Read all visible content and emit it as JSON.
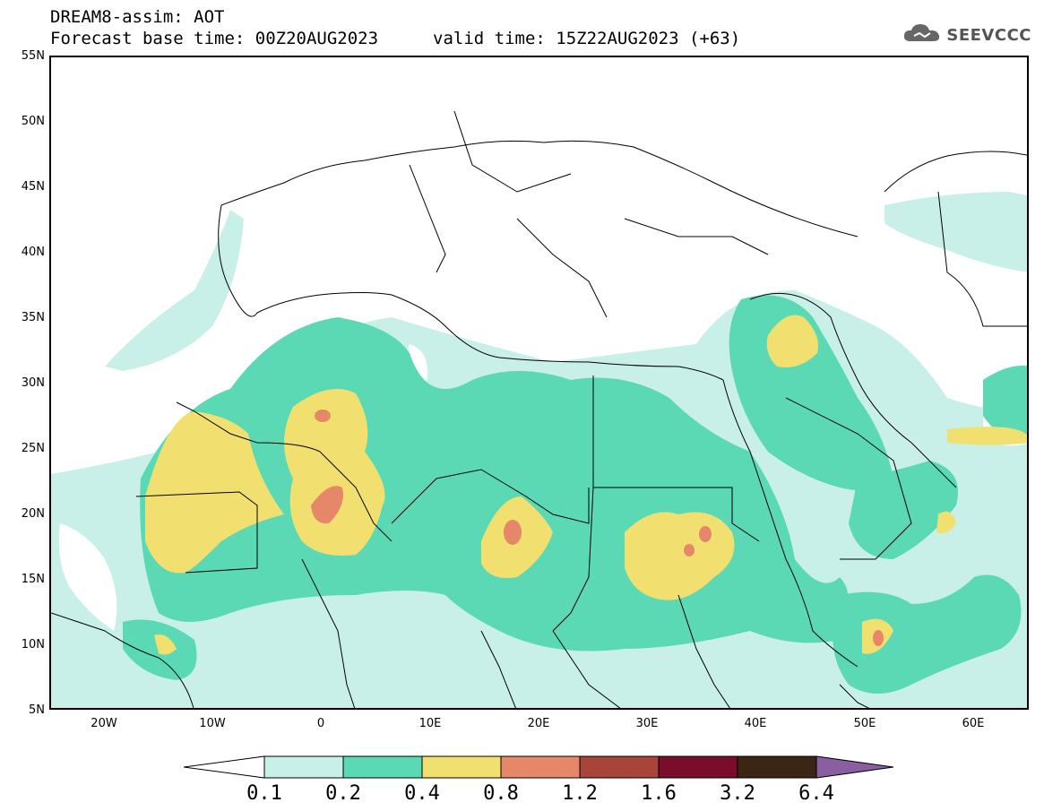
{
  "header": {
    "line1": "DREAM8-assim: AOT",
    "line2": "Forecast base time: 00Z20AUG2023",
    "line3": "valid time: 15Z22AUG2023 (+63)"
  },
  "logo": {
    "text": "SEEVCCC",
    "icon": "cloud-icon"
  },
  "axes": {
    "lat_labels": [
      "55N",
      "50N",
      "45N",
      "40N",
      "35N",
      "30N",
      "25N",
      "20N",
      "15N",
      "10N",
      "5N"
    ],
    "lon_labels": [
      "20W",
      "10W",
      "0",
      "10E",
      "20E",
      "30E",
      "40E",
      "50E",
      "60E"
    ]
  },
  "colorbar": {
    "labels": [
      "0.1",
      "0.2",
      "0.4",
      "0.8",
      "1.2",
      "1.6",
      "3.2",
      "6.4"
    ],
    "colors": [
      "#ffffff",
      "#c8f0e8",
      "#5ad9b4",
      "#f1e070",
      "#e6876a",
      "#a9443a",
      "#7a0c2c",
      "#3b2616",
      "#8a5ea0"
    ]
  }
}
